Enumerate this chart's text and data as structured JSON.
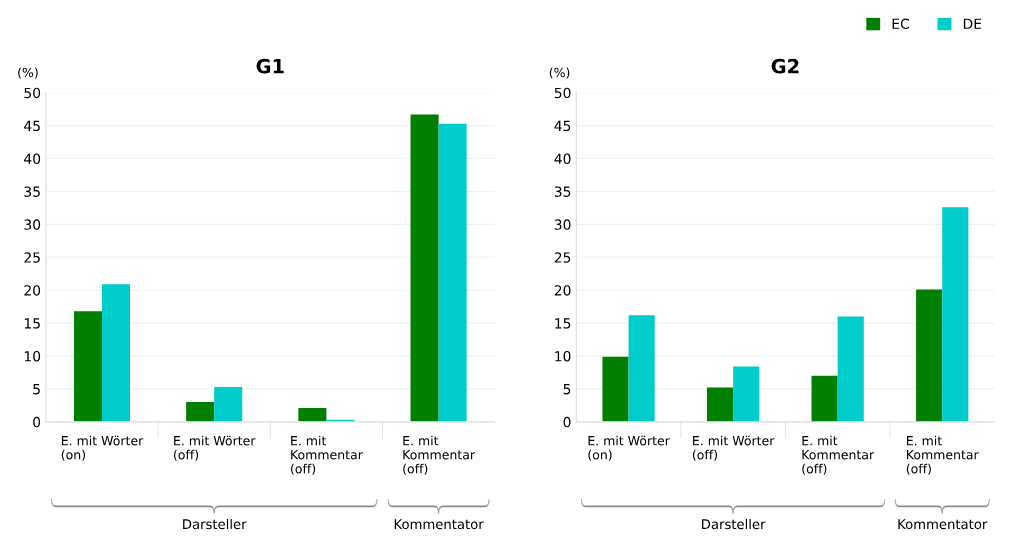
{
  "chart_data": [
    {
      "type": "bar",
      "title": "G1",
      "ylabel": "(%)",
      "categories": [
        "E. mit Wörter\n(on)",
        "E. mit Wörter\n(off)",
        "E. mit\nKommentar\n(off)",
        "E. mit\nKommentar\n(off)"
      ],
      "series": [
        {
          "name": "EC",
          "color": "#007f00",
          "values": [
            16.8,
            3.0,
            2.1,
            46.7
          ]
        },
        {
          "name": "DE",
          "color": "#00cccc",
          "values": [
            20.9,
            5.3,
            0.3,
            45.3
          ]
        }
      ],
      "ylim": [
        0,
        50
      ],
      "yticks": [
        0,
        5,
        10,
        15,
        20,
        25,
        30,
        35,
        40,
        45,
        50
      ],
      "grid": "y",
      "legend": "top right",
      "annotations": [
        "Darsteller",
        "Kommentator"
      ]
    },
    {
      "type": "bar",
      "title": "G2",
      "ylabel": "(%)",
      "categories": [
        "E. mit Wörter\n(on)",
        "E. mit Wörter\n(off)",
        "E. mit\nKommentar\n(off)",
        "E. mit\nKommentar\n(off)"
      ],
      "series": [
        {
          "color": "#007f00",
          "values": [
            9.9,
            5.2,
            7.0,
            20.1
          ]
        },
        {
          "color": "#00cccc",
          "values": [
            16.2,
            8.4,
            16.0,
            32.6
          ]
        }
      ],
      "ylim": [
        0,
        50
      ],
      "yticks": [
        0,
        5,
        10,
        15,
        20,
        25,
        30,
        35,
        40,
        45,
        50
      ],
      "grid": "y",
      "annotations": [
        "Darsteller",
        "Kommentator"
      ]
    }
  ]
}
